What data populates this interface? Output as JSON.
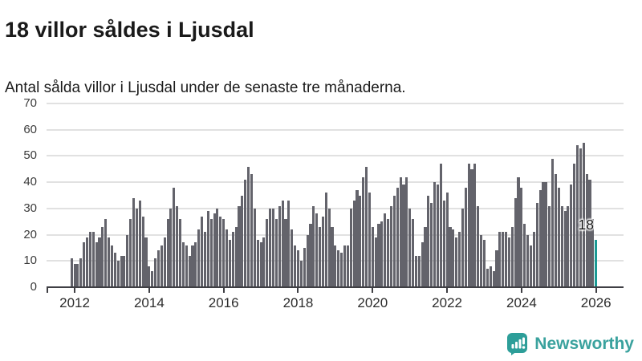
{
  "header": {
    "title": "18 villor såldes i Ljusdal",
    "subtitle": "Antal sålda villor i Ljusdal under de senaste tre månaderna."
  },
  "chart_data": {
    "type": "bar",
    "title": "18 villor såldes i Ljusdal",
    "subtitle": "Antal sålda villor i Ljusdal under de senaste tre månaderna.",
    "x_start": "2011-12",
    "x_end": "2026-01",
    "x_unit": "month",
    "values": [
      11,
      9,
      9,
      11,
      17,
      19,
      21,
      21,
      17,
      19,
      23,
      26,
      19,
      16,
      13,
      10,
      12,
      12,
      20,
      26,
      34,
      30,
      33,
      27,
      19,
      8,
      6,
      11,
      14,
      16,
      19,
      26,
      30,
      38,
      31,
      26,
      17,
      16,
      12,
      16,
      17,
      22,
      27,
      21,
      29,
      26,
      28,
      30,
      27,
      26,
      22,
      18,
      21,
      23,
      31,
      35,
      41,
      46,
      43,
      30,
      18,
      17,
      19,
      26,
      30,
      30,
      26,
      31,
      33,
      26,
      33,
      22,
      16,
      14,
      10,
      15,
      20,
      24,
      31,
      28,
      23,
      27,
      36,
      30,
      23,
      16,
      14,
      13,
      16,
      16,
      30,
      33,
      37,
      35,
      42,
      46,
      36,
      23,
      19,
      24,
      25,
      28,
      26,
      31,
      35,
      38,
      42,
      39,
      42,
      30,
      26,
      12,
      12,
      17,
      23,
      35,
      32,
      40,
      39,
      47,
      33,
      36,
      23,
      22,
      19,
      21,
      30,
      38,
      47,
      45,
      47,
      31,
      20,
      18,
      7,
      8,
      6,
      14,
      21,
      21,
      21,
      19,
      23,
      34,
      42,
      38,
      24,
      20,
      16,
      21,
      32,
      37,
      40,
      40,
      31,
      49,
      43,
      38,
      31,
      29,
      31,
      39,
      47,
      54,
      53,
      55,
      43,
      41,
      26,
      18
    ],
    "highlight_last_bar": true,
    "highlight_value": 18,
    "annotation": "18",
    "yticks": [
      0,
      10,
      20,
      30,
      40,
      50,
      60,
      70
    ],
    "ylim": [
      0,
      73
    ],
    "xticks": [
      "2012",
      "2014",
      "2016",
      "2018",
      "2020",
      "2022",
      "2024",
      "2026"
    ],
    "grid": true,
    "legend": "none",
    "bar_color": "#63636b",
    "highlight_color": "#1a9a94"
  },
  "footer": {
    "brand": "Newsworthy",
    "brand_color": "#3aa29e"
  }
}
